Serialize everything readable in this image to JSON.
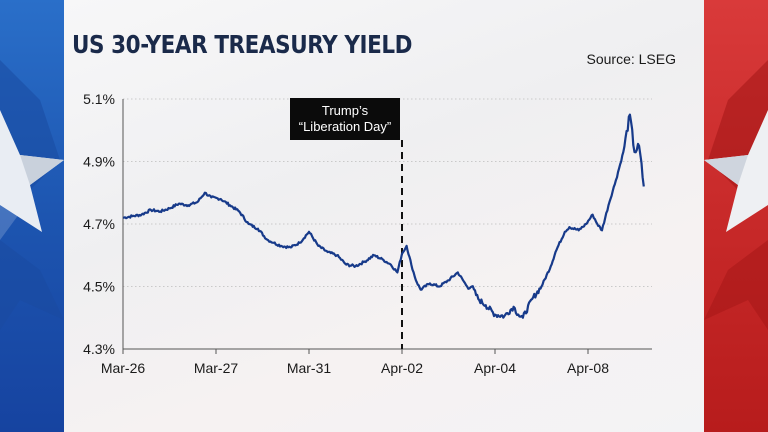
{
  "header": {
    "title": "US 30-YEAR TREASURY YIELD",
    "source": "Source: LSEG"
  },
  "annotation": {
    "line1": "Trump’s",
    "line2": "“Liberation Day”"
  },
  "colors": {
    "line": "#173a8a",
    "grid": "#c9c9c9",
    "left_band": "#1d55b0",
    "right_band": "#c62828"
  },
  "chart_data": {
    "type": "line",
    "title": "US 30-YEAR TREASURY YIELD",
    "xlabel": "",
    "ylabel": "",
    "xlim": [
      0,
      6.45
    ],
    "ylim": [
      4.3,
      5.1
    ],
    "y_ticks": [
      "4.3%",
      "4.5%",
      "4.7%",
      "4.9%",
      "5.1%"
    ],
    "y_tick_values": [
      4.3,
      4.5,
      4.7,
      4.9,
      5.1
    ],
    "x_ticks": [
      "Mar-26",
      "Mar-27",
      "Mar-31",
      "Apr-02",
      "Apr-04",
      "Apr-08"
    ],
    "x_tick_positions": [
      0,
      1,
      2,
      3,
      4,
      5
    ],
    "grid": "horizontal dotted",
    "legend": "none",
    "event_marker": {
      "x": 3,
      "label": "Trump’s “Liberation Day”"
    },
    "series": [
      {
        "x": [
          0,
          0.1,
          0.2,
          0.3,
          0.4,
          0.5,
          0.6,
          0.7,
          0.8,
          0.88,
          0.95,
          1.05,
          1.15,
          1.25,
          1.35,
          1.45,
          1.55,
          1.62,
          1.7,
          1.8,
          1.9,
          2.0,
          2.1,
          2.2,
          2.3,
          2.4,
          2.5,
          2.6,
          2.7,
          2.8,
          2.88,
          2.95,
          3.0,
          3.05,
          3.1,
          3.15,
          3.2,
          3.3,
          3.4,
          3.5,
          3.6,
          3.7,
          3.75,
          3.82,
          3.9,
          4.0,
          4.1,
          4.2,
          4.25,
          4.3,
          4.4,
          4.5,
          4.6,
          4.65,
          4.75,
          4.8,
          4.9,
          4.98,
          5.05,
          5.1,
          5.15,
          5.22,
          5.3,
          5.38,
          5.45,
          5.5,
          5.55,
          5.6
        ],
        "values": [
          4.72,
          4.725,
          4.73,
          4.745,
          4.74,
          4.75,
          4.765,
          4.76,
          4.77,
          4.8,
          4.785,
          4.78,
          4.76,
          4.74,
          4.7,
          4.685,
          4.65,
          4.64,
          4.63,
          4.625,
          4.64,
          4.675,
          4.63,
          4.61,
          4.6,
          4.57,
          4.565,
          4.58,
          4.6,
          4.585,
          4.57,
          4.545,
          4.605,
          4.63,
          4.57,
          4.52,
          4.49,
          4.51,
          4.5,
          4.52,
          4.545,
          4.5,
          4.5,
          4.46,
          4.44,
          4.41,
          4.405,
          4.435,
          4.41,
          4.4,
          4.46,
          4.5,
          4.565,
          4.61,
          4.675,
          4.69,
          4.68,
          4.7,
          4.73,
          4.7,
          4.68,
          4.76,
          4.84,
          4.93,
          5.05,
          4.93,
          4.95,
          4.82
        ]
      }
    ]
  }
}
